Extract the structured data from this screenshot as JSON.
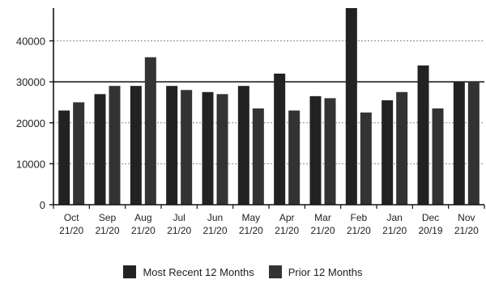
{
  "chart_data": {
    "type": "bar",
    "title": "",
    "xlabel": "",
    "ylabel": "",
    "ylim": [
      0,
      48000
    ],
    "yticks": [
      0,
      10000,
      20000,
      30000,
      40000
    ],
    "ytick_labels": [
      "0",
      "10000",
      "20000",
      "30000",
      "40000"
    ],
    "grid": true,
    "reference_lines": [
      30000
    ],
    "legend_position": "bottom",
    "categories": [
      {
        "month": "Oct",
        "period": "21/20"
      },
      {
        "month": "Sep",
        "period": "21/20"
      },
      {
        "month": "Aug",
        "period": "21/20"
      },
      {
        "month": "Jul",
        "period": "21/20"
      },
      {
        "month": "Jun",
        "period": "21/20"
      },
      {
        "month": "May",
        "period": "21/20"
      },
      {
        "month": "Apr",
        "period": "21/20"
      },
      {
        "month": "Mar",
        "period": "21/20"
      },
      {
        "month": "Feb",
        "period": "21/20"
      },
      {
        "month": "Jan",
        "period": "21/20"
      },
      {
        "month": "Dec",
        "period": "20/19"
      },
      {
        "month": "Nov",
        "period": "21/20"
      }
    ],
    "series": [
      {
        "name": "Most Recent 12 Months",
        "color": "#222222",
        "values": [
          23000,
          27000,
          29000,
          29000,
          27500,
          29000,
          32000,
          26500,
          48000,
          25500,
          34000,
          30000
        ]
      },
      {
        "name": "Prior 12 Months",
        "color": "#333333",
        "values": [
          25000,
          29000,
          36000,
          28000,
          27000,
          23500,
          23000,
          26000,
          22500,
          27500,
          23500,
          30000
        ]
      }
    ]
  }
}
